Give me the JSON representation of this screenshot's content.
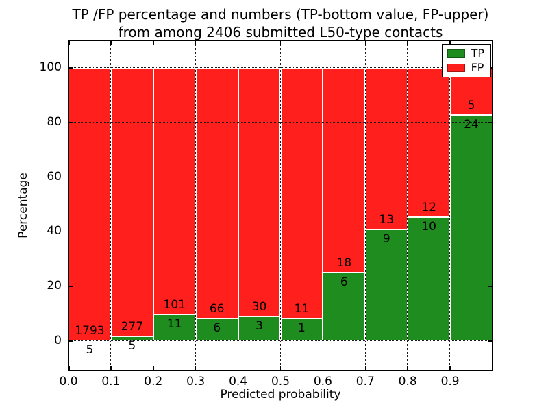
{
  "figure": {
    "title_line1": "TP /FP percentage and numbers (TP-bottom value, FP-upper)",
    "title_line2": "from among 2406 submitted L50-type contacts",
    "xlabel": "Predicted probability",
    "ylabel": "Percentage"
  },
  "legend": {
    "position": "upper right",
    "items": [
      {
        "label": "TP",
        "color": "#1e8c1e"
      },
      {
        "label": "FP",
        "color": "#ff1f1c"
      }
    ]
  },
  "chart_data": {
    "type": "bar",
    "variant": "stacked-percentage",
    "title": "TP /FP percentage and numbers (TP-bottom value, FP-upper) from among 2406 submitted L50-type contacts",
    "xlabel": "Predicted probability",
    "ylabel": "Percentage",
    "total_submitted_contacts": 2406,
    "grid": "dotted",
    "legend_position": "upper right",
    "xlim": [
      0.0,
      1.0
    ],
    "ylim": [
      -10.8,
      110
    ],
    "yticks": [
      0,
      20,
      40,
      60,
      80,
      100
    ],
    "xtick_positions": [
      0.0,
      0.1,
      0.2,
      0.3,
      0.4,
      0.5,
      0.6,
      0.7,
      0.8,
      0.9
    ],
    "xtick_labels": [
      "0.0",
      "0.1",
      "0.2",
      "0.3",
      "0.4",
      "0.5",
      "0.6",
      "0.7",
      "0.8",
      "0.9"
    ],
    "extra_tick_positions": [
      1.0
    ],
    "vertical_grid_positions": [
      0.1,
      0.2,
      0.3,
      0.4,
      0.5,
      0.6,
      0.7,
      0.8,
      0.9
    ],
    "bins": [
      {
        "x0": 0.0,
        "x1": 0.1,
        "tp": 5,
        "fp": 1793
      },
      {
        "x0": 0.1,
        "x1": 0.2,
        "tp": 5,
        "fp": 277
      },
      {
        "x0": 0.2,
        "x1": 0.3,
        "tp": 11,
        "fp": 101
      },
      {
        "x0": 0.3,
        "x1": 0.4,
        "tp": 6,
        "fp": 66
      },
      {
        "x0": 0.4,
        "x1": 0.5,
        "tp": 3,
        "fp": 30
      },
      {
        "x0": 0.5,
        "x1": 0.6,
        "tp": 1,
        "fp": 11
      },
      {
        "x0": 0.6,
        "x1": 0.7,
        "tp": 6,
        "fp": 18
      },
      {
        "x0": 0.7,
        "x1": 0.8,
        "tp": 9,
        "fp": 13
      },
      {
        "x0": 0.8,
        "x1": 0.9,
        "tp": 10,
        "fp": 12
      },
      {
        "x0": 0.9,
        "x1": 1.0,
        "tp": 24,
        "fp": 5
      }
    ],
    "series": [
      {
        "name": "TP",
        "color": "#1e8c1e",
        "counts": [
          5,
          5,
          11,
          6,
          3,
          1,
          6,
          9,
          10,
          24
        ]
      },
      {
        "name": "FP",
        "color": "#ff1f1c",
        "counts": [
          1793,
          277,
          101,
          66,
          30,
          11,
          18,
          13,
          12,
          5
        ]
      }
    ]
  }
}
